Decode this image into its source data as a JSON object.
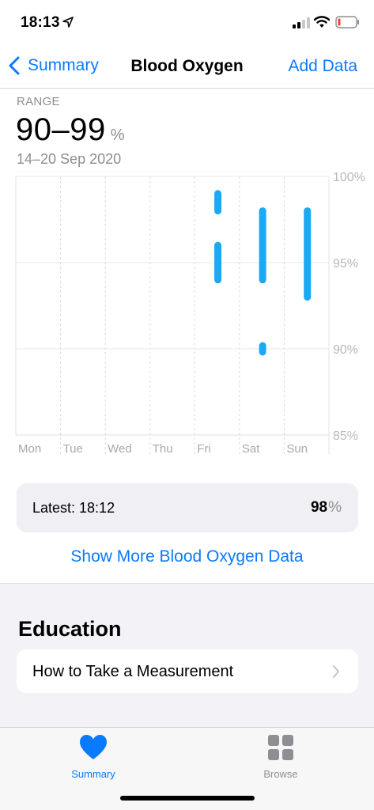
{
  "status_bar": {
    "time": "18:13",
    "icons": [
      "location-arrow-icon",
      "cellular-signal-icon",
      "wifi-icon",
      "battery-low-icon"
    ],
    "battery_color": "#ff3b30"
  },
  "nav": {
    "back_label": "Summary",
    "title": "Blood Oxygen",
    "action_label": "Add Data"
  },
  "range": {
    "label": "RANGE",
    "value": "90–99",
    "unit": "%",
    "date_range": "14–20 Sep 2020"
  },
  "chart_data": {
    "type": "bar",
    "subtype": "range-bars",
    "categories": [
      "Mon",
      "Tue",
      "Wed",
      "Thu",
      "Fri",
      "Sat",
      "Sun"
    ],
    "y_tick_labels": [
      "100%",
      "95%",
      "90%",
      "85%"
    ],
    "ylim": [
      85,
      100
    ],
    "grid": true,
    "color": "#1aa9f5",
    "ranges": [
      {
        "day": "Fri",
        "min": 98,
        "max": 99
      },
      {
        "day": "Fri",
        "min": 94,
        "max": 96
      },
      {
        "day": "Sat",
        "min": 94,
        "max": 98
      },
      {
        "day": "Sat",
        "min": 90,
        "max": 90
      },
      {
        "day": "Sun",
        "min": 93,
        "max": 98
      }
    ]
  },
  "latest": {
    "label": "Latest: 18:12",
    "value": "98",
    "unit": "%"
  },
  "show_more_label": "Show More Blood Oxygen Data",
  "education": {
    "title": "Education",
    "items": [
      {
        "label": "How to Take a Measurement"
      }
    ]
  },
  "tab_bar": {
    "tabs": [
      {
        "label": "Summary",
        "icon": "heart-icon",
        "selected": true
      },
      {
        "label": "Browse",
        "icon": "grid-icon",
        "selected": false
      }
    ],
    "accent_color": "#0a7aff"
  }
}
